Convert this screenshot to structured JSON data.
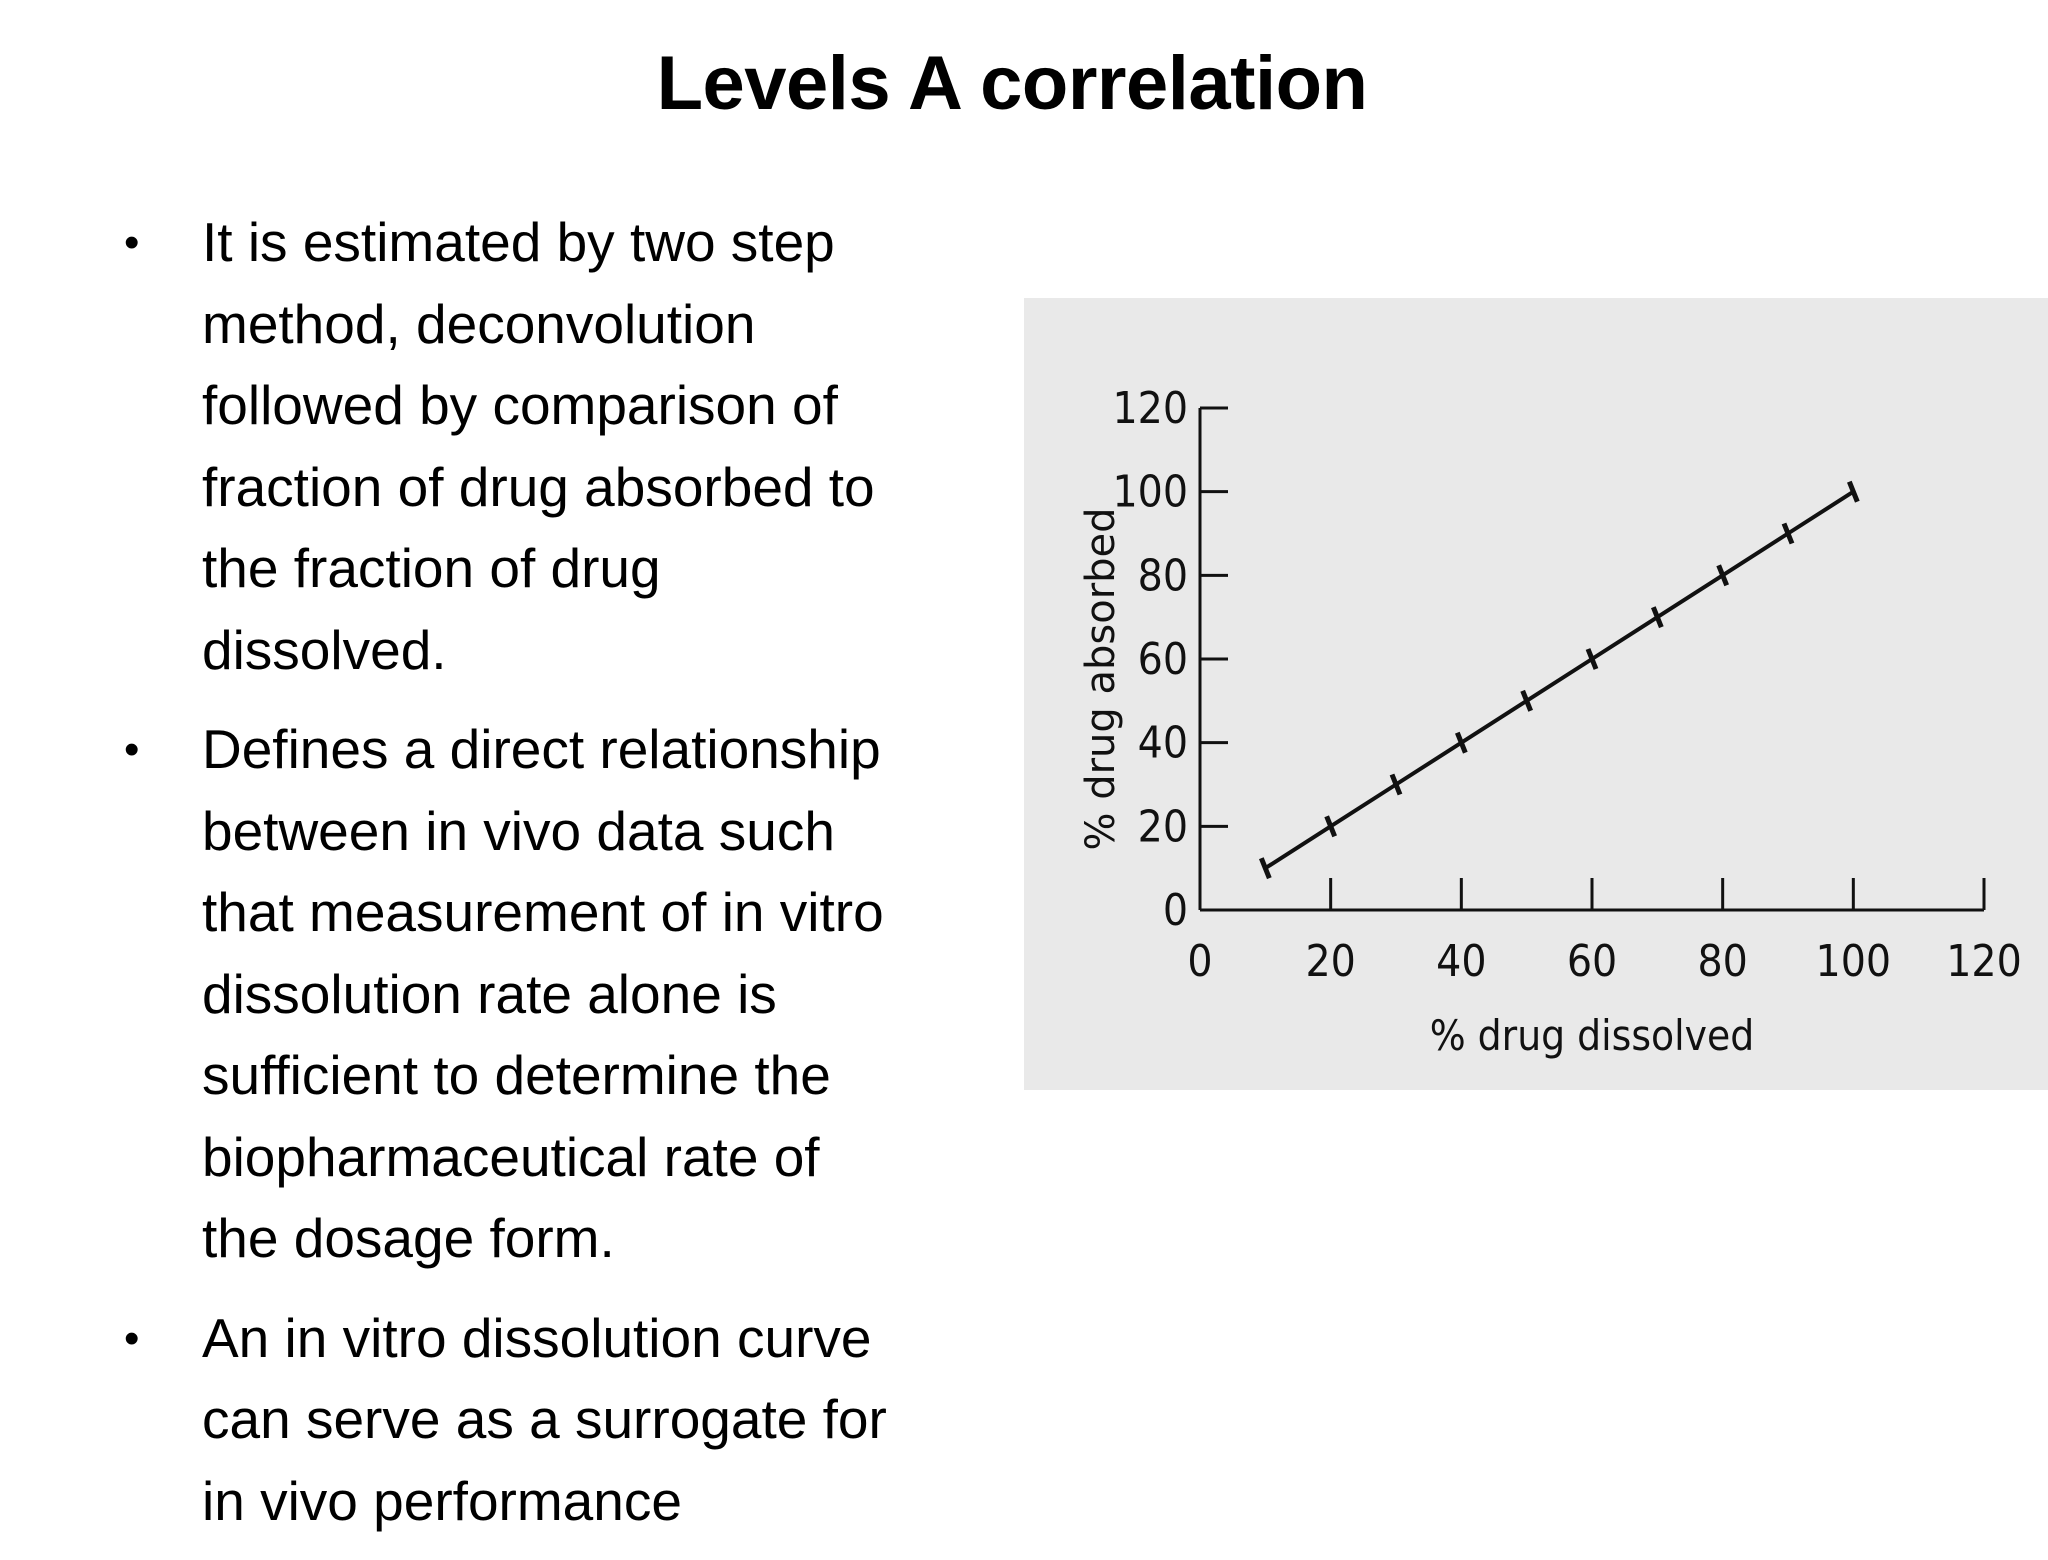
{
  "slide": {
    "title": "Levels A correlation",
    "bullets": [
      {
        "lines": [
          "It is estimated by two step",
          "method, deconvolution",
          "followed by comparison of",
          "fraction of drug absorbed to",
          "the fraction of drug",
          "dissolved."
        ]
      },
      {
        "lines": [
          "Defines a direct relationship",
          "between in vivo data such",
          "that measurement of in vitro",
          "dissolution rate alone is",
          "sufficient to determine the",
          "biopharmaceutical rate of",
          "the dosage form."
        ]
      },
      {
        "lines": [
          "An in vitro dissolution curve",
          "can serve as a surrogate for",
          "in vivo performance"
        ]
      }
    ]
  },
  "chart_data": {
    "type": "line",
    "title": "",
    "xlabel": "% drug dissolved",
    "ylabel": "% drug absorbed",
    "xlim": [
      0,
      120
    ],
    "ylim": [
      0,
      120
    ],
    "xticks": [
      "0",
      "20",
      "40",
      "60",
      "80",
      "100",
      "120"
    ],
    "yticks": [
      "0",
      "20",
      "40",
      "60",
      "80",
      "100",
      "120"
    ],
    "grid": false,
    "legend": "none",
    "x": [
      10,
      20,
      30,
      40,
      50,
      60,
      70,
      80,
      90,
      100
    ],
    "series": [
      {
        "values": [
          10,
          20,
          30,
          40,
          50,
          60,
          70,
          80,
          90,
          100
        ]
      }
    ],
    "colors": {
      "panel_background": "#e9e9e9",
      "line": "#111111"
    }
  }
}
